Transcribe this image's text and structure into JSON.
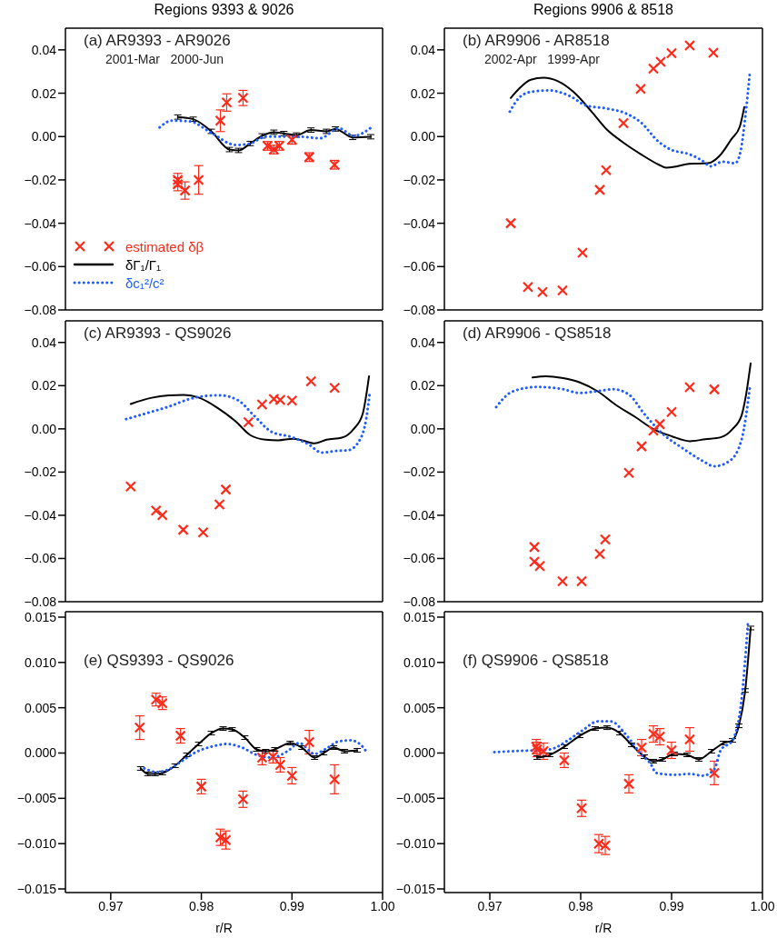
{
  "chart_data": [
    {
      "type": "line",
      "title": "Regions 9393 & 9026",
      "annotations": [
        "(a) AR9393 - AR9026",
        "2001-Mar   2000-Jun"
      ],
      "xlim": [
        0.965,
        1.0
      ],
      "xticks": [
        0.97,
        0.98,
        0.99,
        1.0
      ],
      "ylim": [
        -0.08,
        0.05
      ],
      "yticks": [
        {
          "value": -0.08,
          "label": "−0.08"
        },
        {
          "value": -0.06,
          "label": "−0.06"
        },
        {
          "value": -0.04,
          "label": "−0.04"
        },
        {
          "value": -0.02,
          "label": "−0.02"
        },
        {
          "value": 0,
          "label": "0.00"
        },
        0.02,
        0.04
      ],
      "tick_labels": "y",
      "grid": false,
      "legend": "bottom left",
      "series": [
        {
          "name": "estimated δβ",
          "type": "scatter",
          "marker": "cross",
          "color": "#ff2a1a",
          "x": [
            0.9774,
            0.9774,
            0.9782,
            0.9797,
            0.9821,
            0.9828,
            0.9846,
            0.9873,
            0.988,
            0.9886,
            0.99,
            0.9919,
            0.9947
          ],
          "values": [
            -0.02,
            -0.022,
            -0.0249,
            -0.02,
            0.0073,
            0.0157,
            0.0178,
            -0.0043,
            -0.006,
            -0.0043,
            -0.0015,
            -0.0095,
            -0.013
          ],
          "errors": [
            0.003,
            0.003,
            0.004,
            0.0066,
            0.005,
            0.004,
            0.0035,
            0.002,
            0.002,
            0.002,
            0.002,
            0.002,
            0.002
          ]
        },
        {
          "name": "δΓ₁/Γ₁",
          "type": "line",
          "marker": "none",
          "line_style": "solid",
          "color": "#000000",
          "x": [
            0.9774,
            0.9791,
            0.9811,
            0.9831,
            0.9841,
            0.9854,
            0.9867,
            0.988,
            0.9891,
            0.9905,
            0.9921,
            0.9938,
            0.9948,
            0.9967,
            0.9987
          ],
          "values": [
            0.009,
            0.008,
            0.0024,
            -0.006,
            -0.0064,
            -0.0032,
            0.0003,
            0.002,
            0.0014,
            0.0007,
            0.003,
            0.0024,
            0.0035,
            -0.0004,
            -0.0001
          ],
          "errors": [
            0.001,
            0.001,
            0.001,
            0.001,
            0.001,
            0.001,
            0.001,
            0.001,
            0.001,
            0.001,
            0.001,
            0.001,
            0.001,
            0.001,
            0.001
          ]
        },
        {
          "name": "δc₁²/c²",
          "type": "line",
          "marker": "none",
          "line_style": "dotted",
          "color": "#1e5cff",
          "x": [
            0.9754,
            0.9767,
            0.9787,
            0.9811,
            0.9838,
            0.9854,
            0.9871,
            0.9895,
            0.9911,
            0.9931,
            0.9952,
            0.9968,
            0.9987
          ],
          "values": [
            0.0042,
            0.0073,
            0.007,
            0.0017,
            -0.0039,
            -0.0032,
            0.0,
            0.0,
            -0.0001,
            -0.0008,
            0.0038,
            0.0003,
            0.004
          ]
        }
      ]
    },
    {
      "type": "line",
      "title": "Regions 9906 & 8518",
      "annotations": [
        "(b) AR9906 - AR8518",
        "2002-Apr   1999-Apr"
      ],
      "xlim": [
        0.965,
        1.0
      ],
      "xticks": [
        0.97,
        0.98,
        0.99,
        1.0
      ],
      "ylim": [
        -0.08,
        0.05
      ],
      "yticks": [
        {
          "value": -0.08,
          "label": "−0.08"
        },
        {
          "value": -0.06,
          "label": "−0.06"
        },
        {
          "value": -0.04,
          "label": "−0.04"
        },
        {
          "value": -0.02,
          "label": "−0.02"
        },
        {
          "value": 0,
          "label": "0.00"
        },
        0.02,
        0.04
      ],
      "tick_labels": "y",
      "grid": false,
      "legend": false,
      "series": [
        {
          "type": "scatter",
          "marker": "cross",
          "color": "#ff2a1a",
          "x": [
            0.9723,
            0.9742,
            0.9758,
            0.978,
            0.9802,
            0.9821,
            0.9828,
            0.9847,
            0.9866,
            0.988,
            0.9888,
            0.99,
            0.992,
            0.9946
          ],
          "values": [
            -0.04,
            -0.0694,
            -0.0717,
            -0.071,
            -0.0536,
            -0.0246,
            -0.0155,
            0.0062,
            0.022,
            0.0313,
            0.0345,
            0.0385,
            0.042,
            0.0387
          ]
        },
        {
          "type": "line",
          "marker": "none",
          "line_style": "solid",
          "color": "#000000",
          "x": [
            0.9723,
            0.9732,
            0.9745,
            0.9759,
            0.9775,
            0.9792,
            0.9812,
            0.9829,
            0.9846,
            0.9866,
            0.9886,
            0.9894,
            0.9906,
            0.9919,
            0.994,
            0.9953,
            0.9966,
            0.9975,
            0.998
          ],
          "values": [
            0.0178,
            0.022,
            0.0262,
            0.0271,
            0.0255,
            0.0206,
            0.0115,
            0.0031,
            -0.0025,
            -0.0081,
            -0.013,
            -0.0144,
            -0.0137,
            -0.0126,
            -0.0123,
            -0.0088,
            -0.0011,
            0.0045,
            0.0136
          ]
        },
        {
          "type": "line",
          "marker": "none",
          "line_style": "dotted",
          "color": "#1e5cff",
          "x": [
            0.9722,
            0.9732,
            0.9745,
            0.9765,
            0.9789,
            0.9806,
            0.9829,
            0.9849,
            0.9866,
            0.9886,
            0.9899,
            0.9919,
            0.9933,
            0.9943,
            0.9956,
            0.997,
            0.9976,
            0.9981,
            0.9986
          ],
          "values": [
            0.0115,
            0.0178,
            0.0206,
            0.0213,
            0.0185,
            0.0143,
            0.0129,
            0.0108,
            0.0066,
            -0.0025,
            -0.006,
            -0.0081,
            -0.0109,
            -0.0137,
            -0.0116,
            -0.0123,
            -0.0067,
            0.0087,
            0.029
          ]
        }
      ]
    },
    {
      "type": "line",
      "annotations": [
        "(c) AR9393 - QS9026"
      ],
      "xlim": [
        0.965,
        1.0
      ],
      "xticks": [
        0.97,
        0.98,
        0.99,
        1.0
      ],
      "ylim": [
        -0.08,
        0.05
      ],
      "yticks": [
        {
          "value": -0.08,
          "label": "−0.08"
        },
        {
          "value": -0.06,
          "label": "−0.06"
        },
        {
          "value": -0.04,
          "label": "−0.04"
        },
        {
          "value": -0.02,
          "label": "−0.02"
        },
        {
          "value": 0,
          "label": "0.00"
        },
        0.02,
        0.04
      ],
      "tick_labels": "y",
      "grid": false,
      "legend": false,
      "series": [
        {
          "type": "scatter",
          "marker": "cross",
          "color": "#ff2a1a",
          "x": [
            0.9722,
            0.975,
            0.9757,
            0.978,
            0.9802,
            0.982,
            0.9827,
            0.9852,
            0.9867,
            0.988,
            0.9887,
            0.99,
            0.9921,
            0.9947
          ],
          "values": [
            -0.0267,
            -0.0378,
            -0.0399,
            -0.0467,
            -0.0479,
            -0.035,
            -0.0281,
            0.0031,
            0.0113,
            0.0138,
            0.0134,
            0.0131,
            0.022,
            0.019
          ]
        },
        {
          "type": "line",
          "marker": "none",
          "line_style": "solid",
          "color": "#000000",
          "x": [
            0.9722,
            0.9744,
            0.9764,
            0.9781,
            0.9797,
            0.9818,
            0.9838,
            0.9854,
            0.9871,
            0.9885,
            0.9901,
            0.9911,
            0.9925,
            0.9938,
            0.9955,
            0.9968,
            0.9978,
            0.9985
          ],
          "values": [
            0.0115,
            0.0143,
            0.0155,
            0.0157,
            0.0145,
            0.0097,
            0.0034,
            -0.0029,
            -0.005,
            -0.0053,
            -0.0046,
            -0.0053,
            -0.0067,
            -0.005,
            -0.0041,
            -0.0001,
            0.0069,
            0.0243
          ]
        },
        {
          "type": "line",
          "marker": "none",
          "line_style": "dotted",
          "color": "#1e5cff",
          "x": [
            0.9717,
            0.974,
            0.9764,
            0.9787,
            0.9804,
            0.9821,
            0.9841,
            0.9858,
            0.9878,
            0.9898,
            0.9918,
            0.9933,
            0.9949,
            0.9962,
            0.9975,
            0.9982,
            0.9986
          ],
          "values": [
            0.0045,
            0.0073,
            0.0103,
            0.0138,
            0.0152,
            0.0155,
            0.0131,
            0.0062,
            -0.0015,
            -0.0036,
            -0.0071,
            -0.011,
            -0.0102,
            -0.0099,
            -0.005,
            0.0048,
            0.0173
          ]
        }
      ]
    },
    {
      "type": "line",
      "annotations": [
        "(d) AR9906 - QS8518"
      ],
      "xlim": [
        0.965,
        1.0
      ],
      "xticks": [
        0.97,
        0.98,
        0.99,
        1.0
      ],
      "ylim": [
        -0.08,
        0.05
      ],
      "yticks": [
        {
          "value": -0.08,
          "label": "−0.08"
        },
        {
          "value": -0.06,
          "label": "−0.06"
        },
        {
          "value": -0.04,
          "label": "−0.04"
        },
        {
          "value": -0.02,
          "label": "−0.02"
        },
        {
          "value": 0,
          "label": "0.00"
        },
        0.02,
        0.04
      ],
      "tick_labels": "y",
      "grid": false,
      "legend": false,
      "series": [
        {
          "type": "scatter",
          "marker": "cross",
          "color": "#ff2a1a",
          "x": [
            0.9749,
            0.9749,
            0.9755,
            0.978,
            0.9801,
            0.9821,
            0.9827,
            0.9853,
            0.9867,
            0.988,
            0.9887,
            0.99,
            0.992,
            0.9947
          ],
          "values": [
            -0.0547,
            -0.0615,
            -0.0635,
            -0.0705,
            -0.0705,
            -0.0579,
            -0.0512,
            -0.0204,
            -0.0081,
            -0.0008,
            0.0022,
            0.0078,
            0.0193,
            0.0183
          ]
        },
        {
          "type": "line",
          "marker": "none",
          "line_style": "solid",
          "color": "#000000",
          "x": [
            0.9747,
            0.9762,
            0.9779,
            0.9799,
            0.9819,
            0.9839,
            0.986,
            0.988,
            0.99,
            0.992,
            0.9937,
            0.9954,
            0.9967,
            0.9977,
            0.9982,
            0.9987
          ],
          "values": [
            0.0238,
            0.0243,
            0.0236,
            0.0215,
            0.0173,
            0.011,
            0.0055,
            -0.0001,
            -0.0034,
            -0.0057,
            -0.0048,
            -0.0039,
            -0.0001,
            0.0062,
            0.0159,
            0.0303
          ]
        },
        {
          "type": "line",
          "marker": "none",
          "line_style": "dotted",
          "color": "#1e5cff",
          "x": [
            0.9707,
            0.9725,
            0.9752,
            0.9779,
            0.9799,
            0.9816,
            0.9836,
            0.9853,
            0.987,
            0.989,
            0.9913,
            0.9934,
            0.9947,
            0.9964,
            0.9977,
            0.9982,
            0.9986
          ],
          "values": [
            0.0101,
            0.0173,
            0.0194,
            0.0185,
            0.0166,
            0.0173,
            0.0183,
            0.0159,
            0.0069,
            -0.0022,
            -0.0092,
            -0.0148,
            -0.0173,
            -0.0148,
            -0.005,
            0.0062,
            0.0187
          ]
        }
      ]
    },
    {
      "type": "line",
      "annotations": [
        "(e) QS9393 - QS9026"
      ],
      "xlabel": "r/R",
      "xlim": [
        0.965,
        1.0
      ],
      "xticks": [
        0.97,
        0.98,
        0.99,
        {
          "value": 1.0,
          "label": "1.00"
        }
      ],
      "ylim": [
        -0.0154,
        0.0156
      ],
      "yticks": [
        {
          "value": -0.015,
          "label": "−0.015"
        },
        {
          "value": -0.01,
          "label": "−0.010"
        },
        {
          "value": -0.005,
          "label": "−0.005"
        },
        {
          "value": 0,
          "label": "0.000"
        },
        0.005,
        {
          "value": 0.01,
          "label": "0.010"
        },
        0.015
      ],
      "grid": false,
      "legend": false,
      "series": [
        {
          "type": "scatter",
          "marker": "cross",
          "color": "#ff2a1a",
          "x": [
            0.9732,
            0.975,
            0.9757,
            0.9777,
            0.98,
            0.9821,
            0.9827,
            0.9846,
            0.9867,
            0.9879,
            0.9887,
            0.99,
            0.9919,
            0.9947
          ],
          "values": [
            0.0028,
            0.0059,
            0.0055,
            0.0019,
            -0.0037,
            -0.0093,
            -0.0096,
            -0.0051,
            -0.0005,
            -0.0004,
            -0.0013,
            -0.0025,
            0.0012,
            -0.0029
          ],
          "errors": [
            0.0013,
            0.0007,
            0.0007,
            0.0008,
            0.0008,
            0.0009,
            0.001,
            0.0009,
            0.0008,
            0.0007,
            0.0008,
            0.0009,
            0.0013,
            0.0016
          ]
        },
        {
          "type": "line",
          "marker": "none",
          "line_style": "solid",
          "color": "#000000",
          "x": [
            0.9733,
            0.9741,
            0.9749,
            0.9757,
            0.9771,
            0.9784,
            0.9797,
            0.9811,
            0.9824,
            0.9834,
            0.9848,
            0.9861,
            0.9871,
            0.9881,
            0.9898,
            0.9911,
            0.9925,
            0.9935,
            0.9946,
            0.9958,
            0.9972
          ],
          "values": [
            -0.0017,
            -0.0023,
            -0.0023,
            -0.0022,
            -0.0014,
            -0.0002,
            0.001,
            0.0022,
            0.0027,
            0.0026,
            0.0017,
            0.0004,
            0.0002,
            0.0004,
            0.0011,
            0.0006,
            -0.0005,
            0.0,
            0.0006,
            0.0002,
            0.0003
          ],
          "errors": [
            0.0002,
            0.0002,
            0.0002,
            0.0002,
            0.0002,
            0.0002,
            0.0002,
            0.0002,
            0.0002,
            0.0002,
            0.0002,
            0.0002,
            0.0002,
            0.0002,
            0.0002,
            0.0002,
            0.0002,
            0.0002,
            0.0002,
            0.0002,
            0.0002
          ]
        },
        {
          "type": "line",
          "marker": "none",
          "line_style": "dotted",
          "color": "#1e5cff",
          "x": [
            0.9737,
            0.9751,
            0.9764,
            0.9777,
            0.9794,
            0.9811,
            0.9828,
            0.9845,
            0.9861,
            0.9878,
            0.9895,
            0.9908,
            0.9925,
            0.9938,
            0.9952,
            0.9965,
            0.9978,
            0.9983
          ],
          "values": [
            -0.0017,
            -0.0021,
            -0.0018,
            -0.001,
            0.0001,
            0.0007,
            0.001,
            0.0006,
            -0.0002,
            -0.0005,
            0.0002,
            0.0011,
            -0.0001,
            0.0005,
            0.0013,
            0.0014,
            0.0007,
            0.0
          ]
        }
      ]
    },
    {
      "type": "line",
      "annotations": [
        "(f) QS9906 - QS8518"
      ],
      "xlabel": "r/R",
      "xlim": [
        0.965,
        1.0
      ],
      "xticks": [
        0.97,
        0.98,
        0.99,
        {
          "value": 1.0,
          "label": "1.00"
        }
      ],
      "ylim": [
        -0.0154,
        0.0156
      ],
      "yticks": [
        {
          "value": -0.015,
          "label": "−0.015"
        },
        {
          "value": -0.01,
          "label": "−0.010"
        },
        {
          "value": -0.005,
          "label": "−0.005"
        },
        {
          "value": 0,
          "label": "0.000"
        },
        0.005,
        {
          "value": 0.01,
          "label": "0.010"
        },
        0.015
      ],
      "grid": false,
      "legend": false,
      "series": [
        {
          "type": "scatter",
          "marker": "cross",
          "color": "#ff2a1a",
          "x": [
            0.9751,
            0.9752,
            0.9759,
            0.9782,
            0.9801,
            0.982,
            0.9827,
            0.9853,
            0.9867,
            0.988,
            0.9887,
            0.99,
            0.992,
            0.9947
          ],
          "values": [
            0.0007,
            0.0004,
            0.0002,
            -0.0008,
            -0.0061,
            -0.01,
            -0.0102,
            -0.0034,
            0.0006,
            0.0021,
            0.0018,
            0.0003,
            0.0015,
            -0.0022
          ],
          "errors": [
            0.0008,
            0.0008,
            0.0009,
            0.0008,
            0.0009,
            0.001,
            0.001,
            0.001,
            0.0009,
            0.0009,
            0.0009,
            0.0009,
            0.0013,
            0.0013
          ]
        },
        {
          "type": "line",
          "marker": "none",
          "line_style": "solid",
          "color": "#000000",
          "x": [
            0.9752,
            0.9766,
            0.9782,
            0.9799,
            0.9816,
            0.9829,
            0.9843,
            0.9856,
            0.987,
            0.988,
            0.989,
            0.9903,
            0.9917,
            0.993,
            0.9944,
            0.9957,
            0.9967,
            0.9974,
            0.9981,
            0.9987
          ],
          "values": [
            -0.0005,
            -0.0002,
            0.0007,
            0.0019,
            0.0027,
            0.0028,
            0.0022,
            0.0009,
            -0.0004,
            -0.0009,
            -0.0007,
            -0.0001,
            -0.0002,
            -0.0007,
            0.0002,
            0.0011,
            0.0014,
            0.003,
            0.0069,
            0.0138
          ],
          "errors": [
            0.0002,
            0.0002,
            0.0002,
            0.0002,
            0.0002,
            0.0002,
            0.0002,
            0.0002,
            0.0002,
            0.0002,
            0.0002,
            0.0002,
            0.0002,
            0.0002,
            0.0002,
            0.0002,
            0.0002,
            0.0002,
            0.0002,
            0.0002
          ]
        },
        {
          "type": "line",
          "marker": "none",
          "line_style": "dotted",
          "color": "#1e5cff",
          "x": [
            0.9705,
            0.9725,
            0.9749,
            0.9766,
            0.9786,
            0.9802,
            0.9819,
            0.9833,
            0.985,
            0.9867,
            0.9877,
            0.9883,
            0.9903,
            0.992,
            0.9934,
            0.9947,
            0.9954,
            0.9967,
            0.9977,
            0.9984
          ],
          "values": [
            0.0001,
            0.0002,
            0.0003,
            0.0004,
            0.0014,
            0.0025,
            0.0035,
            0.0035,
            0.002,
            -0.0002,
            -0.0012,
            -0.0022,
            -0.0024,
            -0.0023,
            -0.0025,
            -0.0018,
            0.0003,
            0.0014,
            0.0059,
            0.0143
          ]
        }
      ]
    }
  ]
}
